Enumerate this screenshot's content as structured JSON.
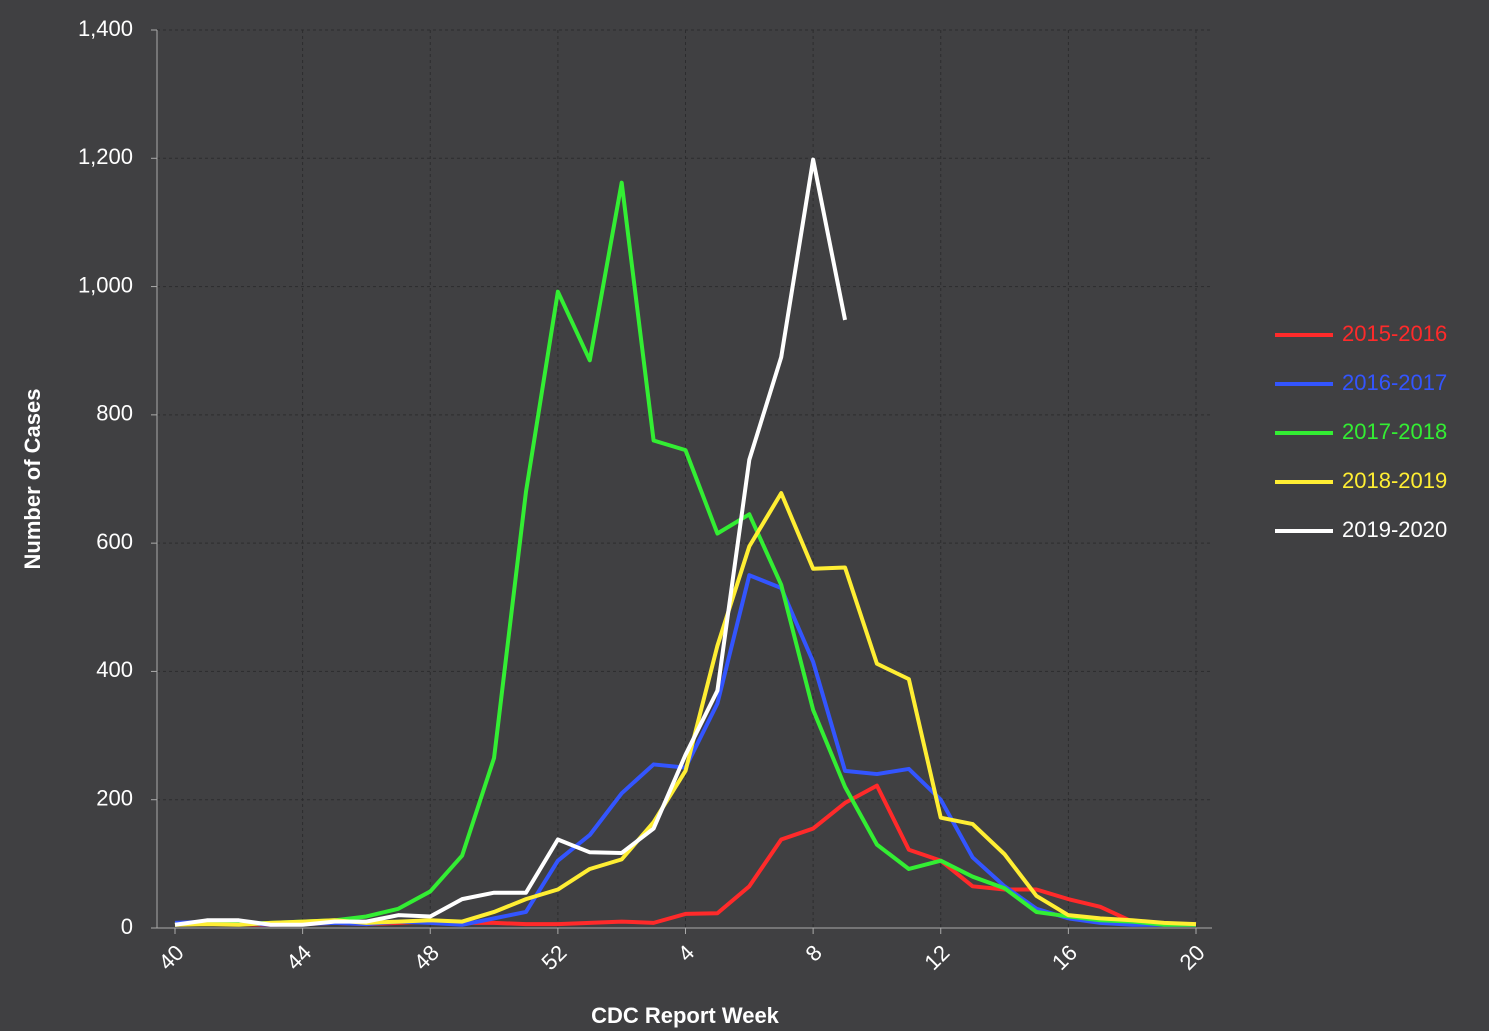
{
  "chart_data": {
    "type": "line",
    "x_label": "CDC Report Week",
    "y_label": "Number of Cases",
    "categories": [
      40,
      null,
      null,
      null,
      44,
      null,
      null,
      null,
      48,
      null,
      null,
      null,
      52,
      null,
      null,
      null,
      4,
      null,
      null,
      null,
      8,
      null,
      null,
      null,
      12,
      null,
      null,
      null,
      16,
      null,
      null,
      null,
      20
    ],
    "series": [
      {
        "name": "2015-2016",
        "color": "#ff2a2a",
        "values": [
          5,
          8,
          6,
          5,
          6,
          8,
          6,
          8,
          10,
          8,
          8,
          6,
          6,
          8,
          10,
          8,
          22,
          23,
          65,
          138,
          155,
          195,
          222,
          122,
          105,
          65,
          60,
          60,
          45,
          33,
          10,
          6,
          5
        ]
      },
      {
        "name": "2016-2017",
        "color": "#3355ff",
        "values": [
          8,
          10,
          8,
          5,
          6,
          8,
          6,
          10,
          8,
          5,
          15,
          25,
          105,
          145,
          210,
          255,
          250,
          350,
          550,
          530,
          415,
          245,
          240,
          248,
          200,
          110,
          65,
          30,
          15,
          8,
          5,
          5,
          5
        ]
      },
      {
        "name": "2017-2018",
        "color": "#33ee33",
        "values": [
          5,
          8,
          6,
          8,
          10,
          12,
          18,
          30,
          57,
          113,
          265,
          680,
          992,
          885,
          1162,
          760,
          745,
          615,
          645,
          535,
          340,
          220,
          130,
          92,
          105,
          80,
          62,
          25,
          18,
          12,
          10,
          5,
          5
        ]
      },
      {
        "name": "2018-2019",
        "color": "#ffee33",
        "values": [
          5,
          6,
          5,
          8,
          10,
          12,
          8,
          10,
          12,
          10,
          25,
          45,
          60,
          92,
          107,
          165,
          245,
          440,
          595,
          678,
          560,
          562,
          412,
          388,
          172,
          162,
          115,
          50,
          20,
          15,
          12,
          8,
          6
        ]
      },
      {
        "name": "2019-2020",
        "color": "#ffffff",
        "values": [
          5,
          12,
          12,
          5,
          5,
          10,
          10,
          20,
          18,
          45,
          55,
          55,
          138,
          118,
          117,
          155,
          270,
          370,
          730,
          890,
          1198,
          948,
          null,
          null,
          null,
          null,
          null,
          null,
          null,
          null,
          null,
          null,
          null
        ]
      }
    ],
    "ylim": [
      0,
      1400
    ],
    "yticks": [
      0,
      200,
      400,
      600,
      800,
      {
        "value": 1000,
        "label": "1,000"
      },
      {
        "value": 1200,
        "label": "1,200"
      },
      {
        "value": 1400,
        "label": "1,400"
      }
    ],
    "grid": true,
    "legend": "right"
  }
}
